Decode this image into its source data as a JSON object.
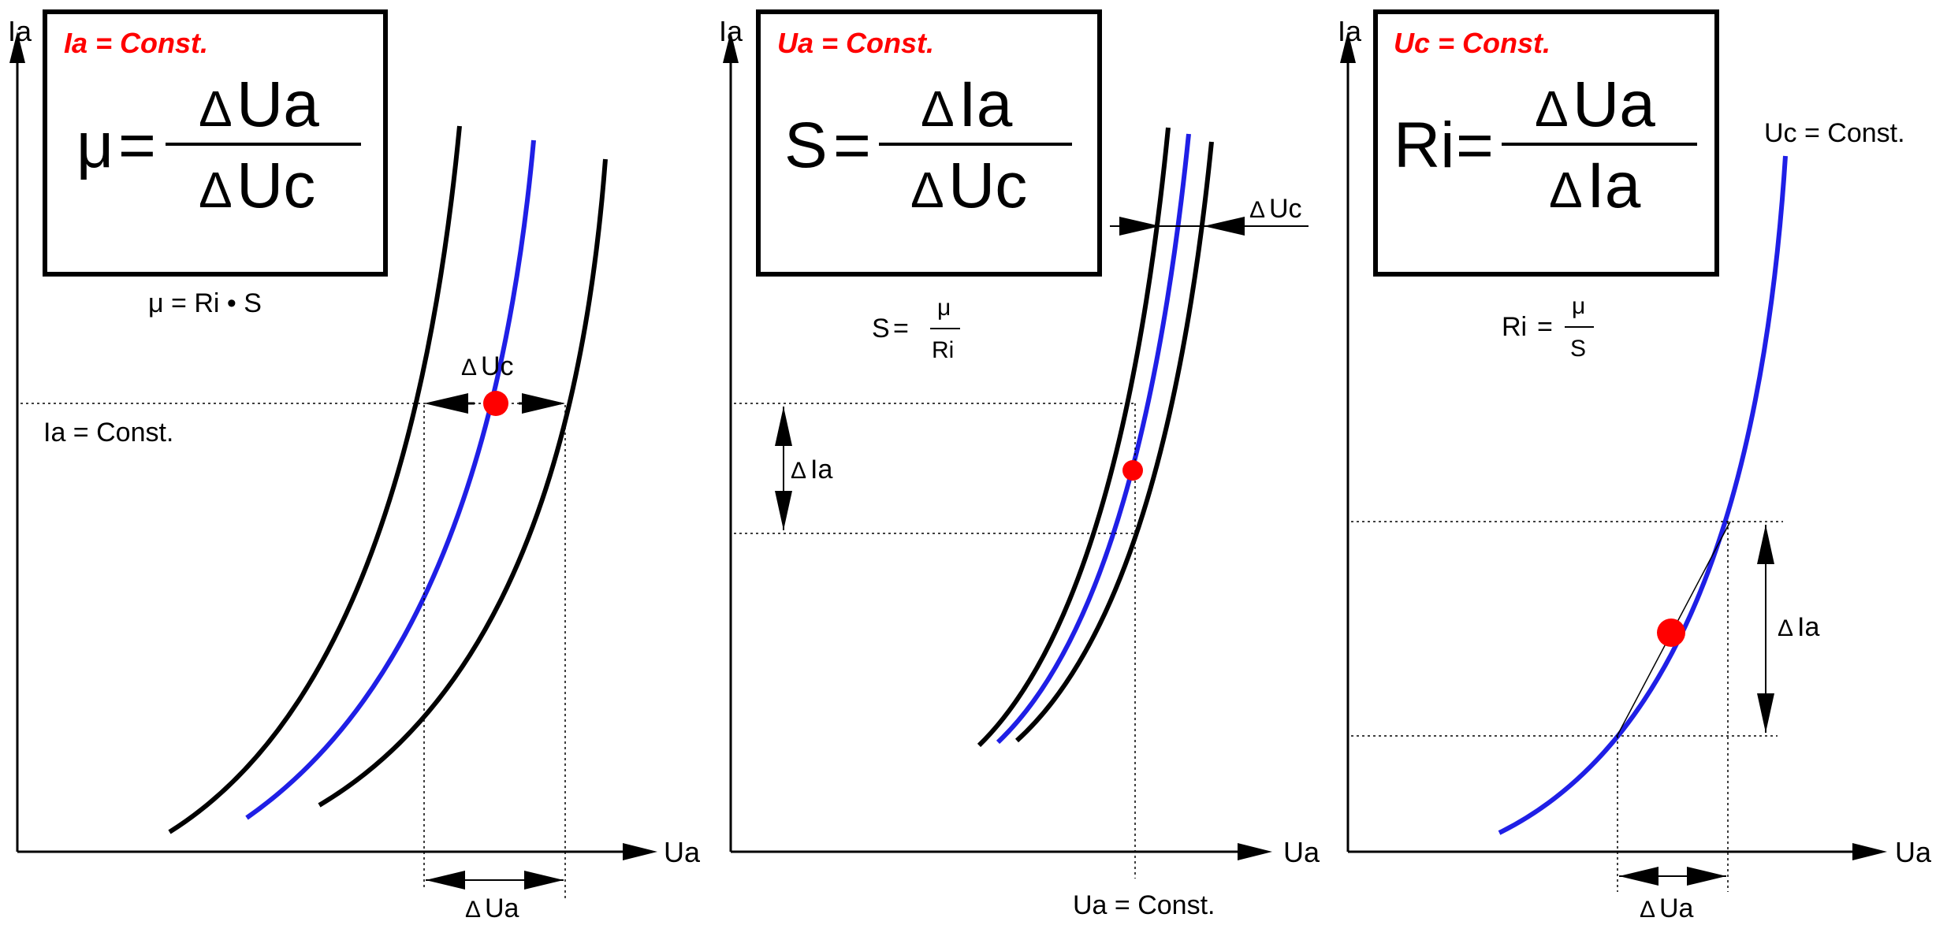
{
  "axes": {
    "y_label": "Ia",
    "x_label": "Ua"
  },
  "delta": "Δ",
  "panels": [
    {
      "id": "mu",
      "condition": "Ia = Const.",
      "formula": {
        "lhs": "μ",
        "num": "Ua",
        "den": "Uc"
      },
      "relation": "μ = Ri • S",
      "label_const": "Ia = Const.",
      "label_uc": "Uc",
      "label_ua": "Ua"
    },
    {
      "id": "s",
      "condition": "Ua = Const.",
      "formula": {
        "lhs": "S",
        "num": "Ia",
        "den": "Uc"
      },
      "relation": {
        "lhs": "S",
        "num": "μ",
        "den": "Ri"
      },
      "label_uc": "Uc",
      "label_ia": "Ia",
      "label_const": "Ua = Const."
    },
    {
      "id": "ri",
      "condition": "Uc = Const.",
      "formula": {
        "lhs": "Ri",
        "num": "Ua",
        "den": "Ia"
      },
      "relation": {
        "lhs": "Ri",
        "num": "μ",
        "den": "S"
      },
      "label_curve": "Uc = Const.",
      "label_ia": "Ia",
      "label_ua": "Ua"
    }
  ],
  "colors": {
    "curve": "#000000",
    "active_curve": "#1f1fe6",
    "point": "#ff0000",
    "condition": "#ff0000"
  }
}
